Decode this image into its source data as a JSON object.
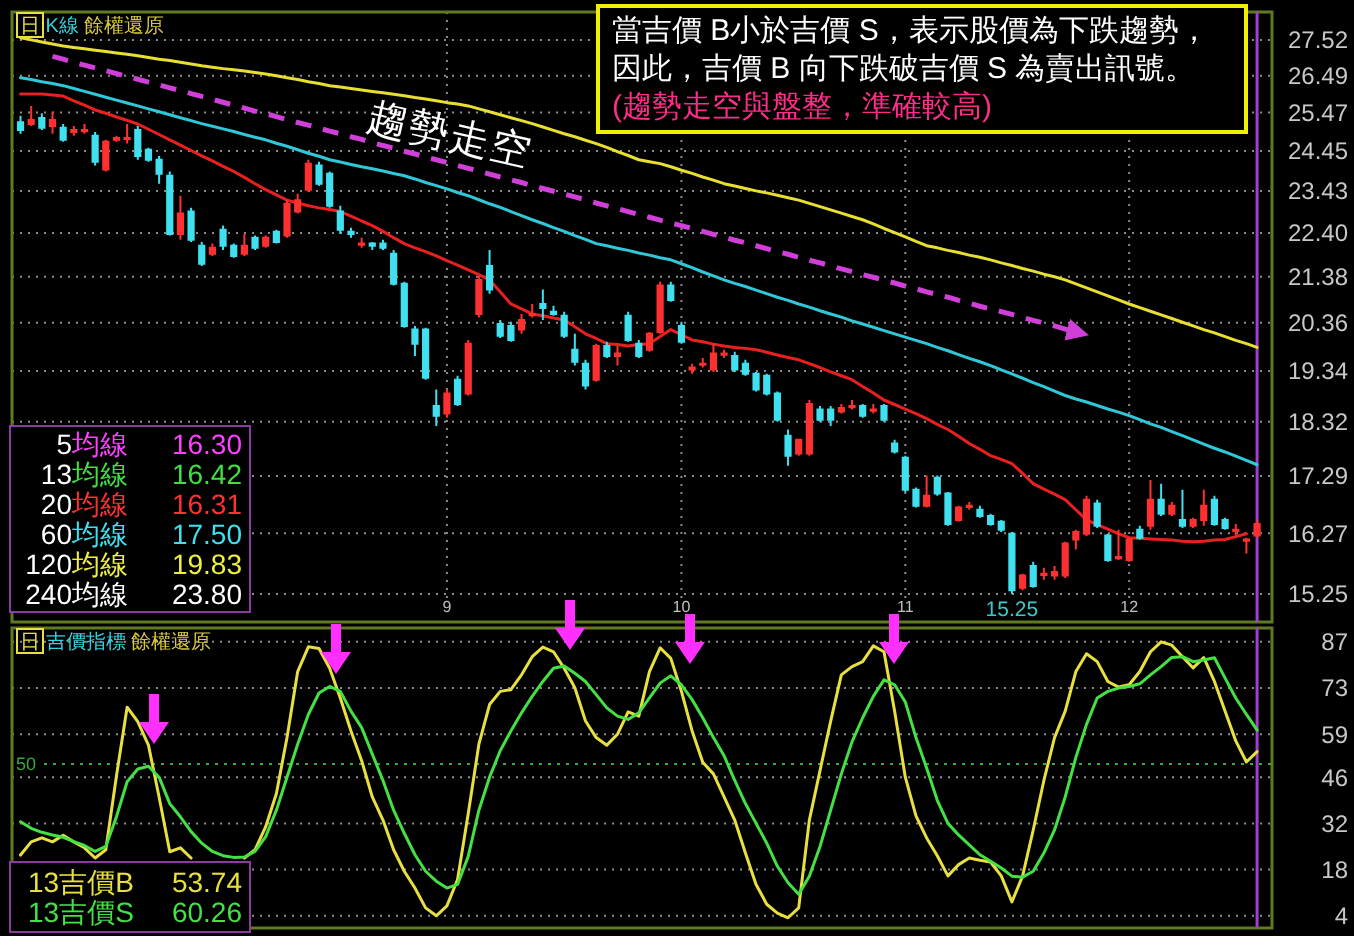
{
  "chart_data": [
    {
      "type": "candlestick",
      "title": "日 K線 餘權還原",
      "categories": [
        null,
        null,
        null,
        null,
        null,
        null,
        null,
        null,
        null,
        null,
        null,
        null,
        null,
        null,
        null,
        null,
        null,
        null,
        null,
        null,
        null,
        null,
        null,
        null,
        null,
        null,
        null,
        null,
        null,
        null,
        null,
        null,
        null,
        null,
        null,
        null,
        null,
        null,
        null,
        null,
        "9",
        null,
        null,
        null,
        null,
        null,
        null,
        null,
        null,
        null,
        null,
        null,
        null,
        null,
        null,
        null,
        null,
        null,
        null,
        null,
        null,
        null,
        "10",
        null,
        null,
        null,
        null,
        null,
        null,
        null,
        null,
        null,
        null,
        null,
        null,
        null,
        null,
        null,
        null,
        null,
        null,
        null,
        null,
        "11",
        null,
        null,
        null,
        null,
        null,
        null,
        null,
        null,
        null,
        null,
        null,
        null,
        null,
        null,
        null,
        null,
        null,
        null,
        null,
        null,
        "12",
        null,
        null,
        null,
        null,
        null,
        null,
        null,
        null,
        null,
        null,
        null,
        null
      ],
      "ohlc": [
        [
          25.21,
          25.38,
          24.9,
          25.0
        ],
        [
          25.16,
          25.65,
          25.11,
          25.27
        ],
        [
          25.32,
          25.45,
          25.0,
          25.06
        ],
        [
          25.11,
          25.49,
          24.9,
          25.27
        ],
        [
          25.06,
          25.16,
          24.69,
          24.74
        ],
        [
          24.95,
          25.11,
          24.85,
          25.0
        ],
        [
          25.0,
          25.16,
          24.9,
          25.0
        ],
        [
          24.85,
          24.95,
          24.07,
          24.17
        ],
        [
          23.97,
          24.74,
          23.92,
          24.69
        ],
        [
          24.74,
          24.85,
          24.69,
          24.79
        ],
        [
          24.79,
          25.16,
          24.64,
          24.79
        ],
        [
          25.0,
          25.11,
          24.22,
          24.32
        ],
        [
          24.48,
          24.53,
          24.17,
          24.22
        ],
        [
          24.22,
          24.32,
          23.61,
          23.86
        ],
        [
          23.81,
          23.92,
          22.34,
          22.38
        ],
        [
          22.38,
          23.31,
          22.24,
          22.87
        ],
        [
          22.92,
          23.01,
          22.19,
          22.24
        ],
        [
          22.1,
          22.19,
          21.63,
          21.68
        ],
        [
          21.91,
          22.15,
          21.86,
          22.05
        ],
        [
          22.48,
          22.58,
          22.0,
          22.1
        ],
        [
          22.1,
          22.15,
          21.82,
          21.86
        ],
        [
          21.91,
          22.38,
          21.86,
          22.1
        ],
        [
          22.29,
          22.34,
          22.0,
          22.05
        ],
        [
          22.1,
          22.34,
          22.05,
          22.29
        ],
        [
          22.43,
          22.48,
          22.15,
          22.19
        ],
        [
          22.34,
          23.2,
          22.29,
          23.11
        ],
        [
          22.92,
          23.36,
          22.87,
          23.2
        ],
        [
          23.46,
          24.22,
          23.41,
          24.12
        ],
        [
          24.07,
          24.17,
          23.56,
          23.61
        ],
        [
          23.86,
          23.92,
          23.01,
          23.06
        ],
        [
          22.92,
          23.06,
          22.38,
          22.48
        ],
        [
          22.43,
          22.53,
          22.29,
          22.38
        ],
        [
          22.15,
          22.29,
          22.05,
          22.15
        ],
        [
          22.15,
          22.19,
          22.0,
          22.1
        ],
        [
          22.15,
          22.24,
          22.0,
          22.05
        ],
        [
          21.91,
          22.0,
          21.18,
          21.22
        ],
        [
          21.22,
          21.27,
          20.25,
          20.29
        ],
        [
          20.21,
          20.29,
          19.65,
          19.91
        ],
        [
          20.21,
          20.25,
          19.16,
          19.2
        ],
        [
          18.63,
          18.96,
          18.24,
          18.44
        ],
        [
          18.48,
          18.96,
          18.4,
          18.88
        ],
        [
          19.16,
          19.24,
          18.63,
          18.67
        ],
        [
          18.88,
          19.99,
          18.84,
          19.91
        ],
        [
          20.55,
          21.4,
          20.47,
          21.31
        ],
        [
          21.63,
          22.0,
          21.0,
          21.09
        ],
        [
          20.33,
          20.42,
          20.03,
          20.08
        ],
        [
          20.29,
          20.38,
          19.95,
          19.99
        ],
        [
          20.21,
          20.55,
          20.12,
          20.42
        ],
        [
          20.55,
          20.77,
          20.47,
          20.55
        ],
        [
          20.77,
          21.09,
          20.42,
          20.68
        ],
        [
          20.6,
          20.73,
          20.51,
          20.55
        ],
        [
          20.51,
          20.6,
          20.03,
          20.08
        ],
        [
          19.78,
          20.12,
          19.45,
          19.53
        ],
        [
          19.49,
          19.57,
          18.96,
          19.04
        ],
        [
          19.16,
          19.91,
          19.12,
          19.86
        ],
        [
          19.86,
          19.95,
          19.61,
          19.65
        ],
        [
          19.65,
          19.86,
          19.45,
          19.7
        ],
        [
          20.51,
          20.6,
          19.95,
          19.99
        ],
        [
          19.91,
          19.99,
          19.61,
          19.65
        ],
        [
          19.78,
          20.16,
          19.74,
          20.12
        ],
        [
          20.16,
          21.27,
          20.12,
          21.18
        ],
        [
          21.18,
          21.27,
          20.82,
          20.86
        ],
        [
          20.29,
          20.38,
          19.91,
          19.95
        ],
        [
          19.37,
          19.49,
          19.28,
          19.41
        ],
        [
          19.49,
          19.61,
          19.41,
          19.49
        ],
        [
          19.37,
          19.91,
          19.32,
          19.7
        ],
        [
          19.7,
          19.78,
          19.61,
          19.7
        ],
        [
          19.65,
          19.74,
          19.32,
          19.37
        ],
        [
          19.49,
          19.57,
          19.24,
          19.28
        ],
        [
          19.28,
          19.32,
          18.92,
          18.96
        ],
        [
          19.24,
          19.28,
          18.84,
          18.88
        ],
        [
          18.88,
          18.92,
          18.32,
          18.36
        ],
        [
          18.05,
          18.17,
          17.48,
          17.67
        ],
        [
          17.71,
          17.97,
          17.67,
          17.97
        ],
        [
          17.71,
          18.75,
          17.67,
          18.67
        ],
        [
          18.56,
          18.63,
          18.32,
          18.36
        ],
        [
          18.56,
          18.63,
          18.24,
          18.36
        ],
        [
          18.52,
          18.67,
          18.48,
          18.59
        ],
        [
          18.63,
          18.75,
          18.56,
          18.63
        ],
        [
          18.63,
          18.67,
          18.4,
          18.44
        ],
        [
          18.56,
          18.67,
          18.48,
          18.56
        ],
        [
          18.63,
          18.67,
          18.32,
          18.36
        ],
        [
          17.9,
          17.97,
          17.71,
          17.75
        ],
        [
          17.63,
          17.67,
          17.0,
          17.04
        ],
        [
          17.04,
          17.08,
          16.72,
          16.75
        ],
        [
          16.75,
          17.3,
          16.72,
          16.93
        ],
        [
          17.26,
          17.3,
          16.93,
          16.97
        ],
        [
          16.97,
          17.0,
          16.4,
          16.43
        ],
        [
          16.5,
          16.75,
          16.47,
          16.72
        ],
        [
          16.75,
          16.82,
          16.68,
          16.75
        ],
        [
          16.68,
          16.75,
          16.54,
          16.57
        ],
        [
          16.57,
          16.61,
          16.4,
          16.43
        ],
        [
          16.47,
          16.5,
          16.29,
          16.33
        ],
        [
          16.26,
          16.29,
          15.25,
          15.31
        ],
        [
          15.35,
          15.58,
          15.31,
          15.55
        ],
        [
          15.71,
          15.78,
          15.35,
          15.38
        ],
        [
          15.58,
          15.68,
          15.48,
          15.58
        ],
        [
          15.55,
          15.71,
          15.48,
          15.61
        ],
        [
          15.55,
          16.12,
          15.51,
          16.09
        ],
        [
          16.16,
          16.33,
          15.99,
          16.29
        ],
        [
          16.26,
          16.93,
          16.22,
          16.86
        ],
        [
          16.79,
          16.86,
          16.36,
          16.4
        ],
        [
          16.23,
          16.26,
          15.78,
          15.81
        ],
        [
          15.86,
          16.33,
          15.81,
          15.86
        ],
        [
          15.81,
          16.19,
          15.78,
          16.16
        ],
        [
          16.33,
          16.4,
          16.16,
          16.19
        ],
        [
          16.4,
          17.22,
          16.33,
          16.86
        ],
        [
          16.86,
          17.15,
          16.57,
          16.61
        ],
        [
          16.61,
          16.82,
          16.57,
          16.75
        ],
        [
          16.5,
          17.04,
          16.36,
          16.4
        ],
        [
          16.4,
          16.54,
          16.36,
          16.5
        ],
        [
          16.5,
          17.04,
          16.4,
          16.75
        ],
        [
          16.86,
          16.93,
          16.4,
          16.43
        ],
        [
          16.5,
          16.54,
          16.33,
          16.36
        ],
        [
          16.33,
          16.43,
          16.23,
          16.33
        ],
        [
          16.16,
          16.19,
          15.92,
          16.16
        ],
        [
          16.23,
          16.5,
          16.19,
          16.43
        ]
      ],
      "colors": [
        "#40e0f0",
        "#ff3030",
        "#40e0f0",
        "#ff3030",
        "#40e0f0",
        "#ff3030",
        "#ff3030",
        "#40e0f0",
        "#ff3030",
        "#ff3030",
        "#ff3030",
        "#40e0f0",
        "#40e0f0",
        "#40e0f0",
        "#40e0f0",
        "#ff3030",
        "#40e0f0",
        "#40e0f0",
        "#ff3030",
        "#40e0f0",
        "#40e0f0",
        "#ff3030",
        "#40e0f0",
        "#ff3030",
        "#40e0f0",
        "#ff3030",
        "#ff3030",
        "#ff3030",
        "#40e0f0",
        "#40e0f0",
        "#40e0f0",
        "#40e0f0",
        "#ff3030",
        "#40e0f0",
        "#40e0f0",
        "#40e0f0",
        "#40e0f0",
        "#40e0f0",
        "#40e0f0",
        "#40e0f0",
        "#ff3030",
        "#40e0f0",
        "#ff3030",
        "#ff3030",
        "#40e0f0",
        "#40e0f0",
        "#40e0f0",
        "#ff3030",
        "#ff3030",
        "#40e0f0",
        "#40e0f0",
        "#40e0f0",
        "#40e0f0",
        "#40e0f0",
        "#ff3030",
        "#40e0f0",
        "#ff3030",
        "#40e0f0",
        "#40e0f0",
        "#ff3030",
        "#ff3030",
        "#40e0f0",
        "#40e0f0",
        "#ff3030",
        "#ff3030",
        "#ff3030",
        "#ff3030",
        "#40e0f0",
        "#40e0f0",
        "#40e0f0",
        "#40e0f0",
        "#40e0f0",
        "#40e0f0",
        "#ff3030",
        "#ff3030",
        "#40e0f0",
        "#40e0f0",
        "#ff3030",
        "#ff3030",
        "#40e0f0",
        "#ff3030",
        "#40e0f0",
        "#40e0f0",
        "#40e0f0",
        "#40e0f0",
        "#ff3030",
        "#40e0f0",
        "#40e0f0",
        "#ff3030",
        "#ff3030",
        "#40e0f0",
        "#40e0f0",
        "#40e0f0",
        "#40e0f0",
        "#ff3030",
        "#40e0f0",
        "#ff3030",
        "#ff3030",
        "#ff3030",
        "#ff3030",
        "#ff3030",
        "#40e0f0",
        "#40e0f0",
        "#ff3030",
        "#ff3030",
        "#40e0f0",
        "#ff3030",
        "#40e0f0",
        "#ff3030",
        "#40e0f0",
        "#ff3030",
        "#ff3030",
        "#40e0f0",
        "#40e0f0",
        "#ff3030",
        "#ff3030",
        "#ff3030"
      ],
      "series": [
        {
          "type": "line",
          "color": "#e82020",
          "values": [
            25.98,
            25.98,
            25.98,
            25.95,
            25.92,
            25.79,
            25.67,
            25.54,
            25.45,
            25.35,
            25.26,
            25.16,
            25.02,
            24.88,
            24.74,
            24.6,
            24.46,
            24.32,
            24.19,
            24.05,
            23.92,
            23.77,
            23.61,
            23.46,
            23.33,
            23.2,
            23.13,
            23.06,
            23.01,
            22.97,
            22.92,
            22.81,
            22.69,
            22.58,
            22.44,
            22.29,
            22.15,
            22.05,
            21.96,
            21.86,
            21.75,
            21.65,
            21.54,
            21.43,
            21.31,
            21.04,
            20.77,
            20.66,
            20.55,
            20.51,
            20.46,
            20.42,
            20.27,
            20.12,
            20.02,
            19.91,
            19.89,
            19.86,
            19.89,
            19.91,
            20.06,
            20.21,
            20.1,
            19.99,
            19.95,
            19.9,
            19.86,
            19.83,
            19.81,
            19.78,
            19.73,
            19.67,
            19.62,
            19.57,
            19.49,
            19.41,
            19.32,
            19.24,
            19.16,
            19.02,
            18.89,
            18.75,
            18.66,
            18.57,
            18.48,
            18.38,
            18.27,
            18.17,
            18.04,
            17.9,
            17.79,
            17.67,
            17.6,
            17.52,
            17.34,
            17.15,
            17.05,
            16.96,
            16.86,
            16.68,
            16.5,
            16.42,
            16.34,
            16.26,
            16.19,
            16.18,
            16.17,
            16.16,
            16.15,
            16.13,
            16.12,
            16.13,
            16.15,
            16.16,
            16.21,
            16.26,
            null
          ]
        },
        {
          "type": "line",
          "color": "#30c8d8",
          "values": [
            26.43,
            26.38,
            26.32,
            26.27,
            26.21,
            26.13,
            26.05,
            25.97,
            25.89,
            25.81,
            25.73,
            25.65,
            25.57,
            25.49,
            25.41,
            25.33,
            25.25,
            25.17,
            25.1,
            25.03,
            24.96,
            24.88,
            24.81,
            24.74,
            24.65,
            24.57,
            24.48,
            24.39,
            24.31,
            24.22,
            24.16,
            24.1,
            24.04,
            23.99,
            23.93,
            23.87,
            23.81,
            23.73,
            23.64,
            23.56,
            23.48,
            23.39,
            23.31,
            23.21,
            23.11,
            23.02,
            22.92,
            22.82,
            22.72,
            22.63,
            22.53,
            22.44,
            22.34,
            22.25,
            22.15,
            22.1,
            22.04,
            21.99,
            21.93,
            21.88,
            21.82,
            21.77,
            21.68,
            21.59,
            21.49,
            21.4,
            21.31,
            21.23,
            21.16,
            21.08,
            21.0,
            20.92,
            20.85,
            20.77,
            20.7,
            20.62,
            20.55,
            20.48,
            20.4,
            20.33,
            20.26,
            20.19,
            20.12,
            20.05,
            19.98,
            19.91,
            19.83,
            19.76,
            19.68,
            19.6,
            19.53,
            19.45,
            19.36,
            19.28,
            19.19,
            19.1,
            19.02,
            18.93,
            18.84,
            18.77,
            18.71,
            18.64,
            18.57,
            18.51,
            18.44,
            18.36,
            18.28,
            18.21,
            18.13,
            18.05,
            17.97,
            17.89,
            17.81,
            17.74,
            17.66,
            17.58,
            17.5
          ]
        },
        {
          "type": "line",
          "color": "#e8e030",
          "values": [
            27.58,
            27.52,
            27.46,
            27.4,
            27.34,
            27.3,
            27.26,
            27.22,
            27.18,
            27.14,
            27.1,
            27.06,
            27.01,
            26.96,
            26.92,
            26.87,
            26.82,
            26.77,
            26.73,
            26.69,
            26.66,
            26.62,
            26.58,
            26.54,
            26.49,
            26.43,
            26.38,
            26.32,
            26.27,
            26.21,
            26.17,
            26.13,
            26.09,
            26.05,
            26.01,
            25.97,
            25.93,
            25.88,
            25.84,
            25.79,
            25.74,
            25.7,
            25.65,
            25.57,
            25.49,
            25.41,
            25.33,
            25.25,
            25.17,
            25.08,
            24.99,
            24.9,
            24.82,
            24.73,
            24.64,
            24.54,
            24.43,
            24.33,
            24.22,
            24.17,
            24.12,
            24.04,
            23.95,
            23.87,
            23.78,
            23.7,
            23.61,
            23.55,
            23.49,
            23.43,
            23.38,
            23.32,
            23.26,
            23.2,
            23.12,
            23.04,
            22.96,
            22.88,
            22.8,
            22.72,
            22.62,
            22.51,
            22.41,
            22.31,
            22.2,
            22.1,
            22.05,
            21.99,
            21.94,
            21.88,
            21.83,
            21.77,
            21.7,
            21.64,
            21.57,
            21.51,
            21.44,
            21.38,
            21.31,
            21.22,
            21.13,
            21.04,
            20.95,
            20.86,
            20.77,
            20.69,
            20.61,
            20.53,
            20.45,
            20.37,
            20.29,
            20.21,
            20.14,
            20.06,
            19.98,
            19.91,
            19.83
          ]
        },
        {
          "type": "line",
          "color": "#d040d8",
          "line_style": "dashed",
          "values": [
            null,
            null,
            null,
            27.04,
            26.96,
            26.87,
            26.79,
            26.71,
            26.63,
            26.55,
            26.47,
            26.39,
            26.31,
            26.23,
            26.15,
            26.07,
            25.99,
            25.91,
            25.83,
            25.75,
            25.67,
            25.59,
            25.51,
            25.44,
            25.36,
            25.28,
            25.2,
            25.13,
            25.05,
            24.97,
            24.9,
            24.82,
            24.75,
            24.67,
            24.59,
            24.52,
            24.44,
            24.37,
            24.29,
            24.22,
            24.15,
            24.07,
            24.0,
            23.93,
            23.85,
            23.78,
            23.71,
            23.64,
            23.56,
            23.49,
            23.42,
            23.35,
            23.28,
            23.21,
            23.13,
            23.06,
            22.99,
            22.92,
            22.85,
            22.78,
            22.71,
            22.64,
            22.58,
            22.51,
            22.44,
            22.37,
            22.3,
            22.23,
            22.17,
            22.1,
            22.03,
            21.96,
            21.9,
            21.83,
            21.76,
            21.7,
            21.63,
            21.56,
            21.5,
            21.43,
            21.37,
            21.3,
            21.24,
            21.17,
            21.11,
            21.04,
            20.98,
            20.92,
            20.85,
            20.79,
            20.72,
            20.66,
            20.6,
            20.54,
            20.47,
            20.41,
            20.35,
            20.29,
            20.22,
            20.16,
            null,
            null,
            null,
            null,
            null,
            null,
            null,
            null,
            null,
            null,
            null,
            null,
            null,
            null,
            null,
            null,
            null
          ]
        }
      ],
      "log": true,
      "ylim": [
        14.8,
        28.35
      ],
      "yticks": [
        27.52,
        26.49,
        25.47,
        24.45,
        23.43,
        {
          "value": 22.4,
          "label": "22.40"
        },
        21.38,
        20.36,
        19.34,
        18.32,
        17.29,
        16.27,
        15.25
      ],
      "grid": true,
      "annotations": [
        {
          "text": "15.25",
          "y": 15.25
        },
        "趨勢走空",
        "當吉價 B小於吉價 S，表示股價為下跌趨勢，因此，吉價 B 向下跌破吉價 S 為賣出訊號。",
        "(趨勢走空與盤整，準確較高)",
        "5均線",
        "16.30",
        "13均線",
        "16.42",
        "20均線",
        "16.31",
        "60均線",
        "17.50",
        "120均線",
        "19.83",
        "240均線",
        "23.80"
      ]
    },
    {
      "type": "line",
      "title": "日 吉價指標 餘權還原",
      "categories": [
        null,
        null,
        null,
        null,
        null,
        null,
        null,
        null,
        null,
        null,
        null,
        null,
        null,
        null,
        null,
        null,
        null,
        null,
        null,
        null,
        null,
        null,
        null,
        null,
        null,
        null,
        null,
        null,
        null,
        null,
        null,
        null,
        null,
        null,
        null,
        null,
        null,
        null,
        null,
        null,
        "9",
        null,
        null,
        null,
        null,
        null,
        null,
        null,
        null,
        null,
        null,
        null,
        null,
        null,
        null,
        null,
        null,
        null,
        null,
        null,
        null,
        null,
        "10",
        null,
        null,
        null,
        null,
        null,
        null,
        null,
        null,
        null,
        null,
        null,
        null,
        null,
        null,
        null,
        null,
        null,
        null,
        null,
        null,
        "11",
        null,
        null,
        null,
        null,
        null,
        null,
        null,
        null,
        null,
        null,
        null,
        null,
        null,
        null,
        null,
        null,
        null,
        null,
        null,
        null,
        "12",
        null,
        null,
        null,
        null,
        null,
        null,
        null,
        null,
        null,
        null,
        null,
        null
      ],
      "series": [
        {
          "name": "13吉價B",
          "color": "#e8e040",
          "values": [
            22.4,
            26.4,
            27.6,
            26.4,
            28.4,
            26.4,
            24.6,
            21.5,
            24,
            46.4,
            67.2,
            62.8,
            55.7,
            40,
            23.4,
            24.6,
            21.5,
            null,
            null,
            null,
            null,
            21.5,
            24,
            31,
            41,
            58,
            78,
            85.5,
            85,
            79,
            70,
            60,
            51,
            40,
            33,
            24,
            17.5,
            12.4,
            6.4,
            4,
            7,
            15,
            35,
            56,
            68,
            72,
            72.5,
            77,
            82.5,
            85.4,
            84,
            79,
            73.1,
            63,
            58,
            55.7,
            59,
            65.8,
            64.5,
            78,
            85.2,
            82,
            72,
            60,
            50.5,
            47,
            40,
            33,
            23,
            13.5,
            7.5,
            4.8,
            3.4,
            6.4,
            33,
            48,
            63,
            77,
            79.5,
            81,
            85.8,
            84,
            66,
            46,
            34.3,
            27.6,
            22.2,
            16.1,
            19.5,
            21.5,
            20.8,
            20.3,
            16.1,
            8.2,
            16,
            30,
            45,
            58,
            66,
            78,
            83.4,
            81,
            75,
            73.3,
            74,
            78,
            84,
            87,
            86,
            82.5,
            79.1,
            82.2,
            75,
            66,
            57,
            50.6,
            53.74
          ]
        },
        {
          "name": "13吉價S",
          "color": "#44e044",
          "values": [
            32.5,
            30.5,
            29.3,
            28.5,
            27.8,
            26.5,
            25.3,
            23.5,
            25,
            34,
            44.6,
            48.5,
            49.3,
            46,
            38,
            34,
            29.5,
            26,
            23.5,
            22.2,
            21.7,
            21.8,
            23.5,
            28,
            36,
            46,
            56,
            65,
            71.5,
            73.5,
            72,
            66,
            61,
            53,
            45,
            36,
            29,
            22.5,
            17.5,
            14.5,
            12.4,
            13.5,
            22,
            36,
            46,
            54,
            60,
            65.5,
            70.5,
            75,
            79,
            79.7,
            77.5,
            75,
            71,
            67,
            64.5,
            63.5,
            65.5,
            70,
            74.5,
            76.7,
            74,
            69.5,
            64,
            58,
            52.5,
            45,
            38,
            32,
            26,
            19,
            14,
            10.5,
            16,
            25,
            36,
            47,
            56.7,
            64,
            70.5,
            75.5,
            74,
            68.8,
            58,
            48.8,
            39,
            32,
            28.5,
            25.5,
            22.5,
            20.5,
            18.5,
            16,
            15.7,
            17.5,
            23,
            30,
            40,
            52,
            62,
            70,
            72,
            73,
            73.5,
            74.3,
            77,
            79.5,
            82.3,
            82.5,
            81,
            81.5,
            82.2,
            76,
            70,
            65,
            60.26
          ]
        }
      ],
      "ylim": [
        0.3,
        91.2
      ],
      "yticks": [
        87,
        73,
        59,
        46,
        32,
        18,
        4
      ],
      "tick_labels": "y",
      "grid": "y",
      "legend": "bottom left",
      "ref_lines": [
        {
          "axis": "y",
          "value": 50,
          "label": "50",
          "color": "#3aa83a",
          "line_style": "dotted"
        }
      ],
      "annotations": [
        "53.74",
        "60.26"
      ]
    }
  ]
}
